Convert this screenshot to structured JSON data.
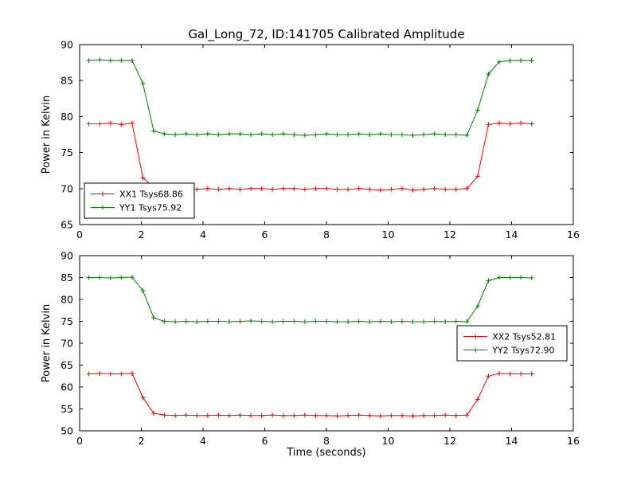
{
  "figure": {
    "title": "Gal_Long_72, ID:141705 Calibrated Amplitude",
    "xlabel": "Time (seconds)",
    "background": "#ffffff",
    "axis_color": "#000000"
  },
  "chart_data": [
    {
      "type": "line",
      "ylabel": "Power in Kelvin",
      "xlim": [
        0,
        16
      ],
      "ylim": [
        65,
        90
      ],
      "xticks": [
        0,
        2,
        4,
        6,
        8,
        10,
        12,
        14,
        16
      ],
      "yticks": [
        65,
        70,
        75,
        80,
        85,
        90
      ],
      "grid": false,
      "legend_position": "lower-left",
      "marker": "plus",
      "x": [
        0.3,
        0.65,
        1.0,
        1.35,
        1.7,
        2.05,
        2.4,
        2.75,
        3.1,
        3.45,
        3.8,
        4.15,
        4.5,
        4.85,
        5.2,
        5.55,
        5.9,
        6.25,
        6.6,
        6.95,
        7.3,
        7.65,
        8.0,
        8.35,
        8.7,
        9.05,
        9.4,
        9.75,
        10.1,
        10.45,
        10.8,
        11.15,
        11.5,
        11.85,
        12.2,
        12.55,
        12.9,
        13.25,
        13.6,
        13.95,
        14.3,
        14.65
      ],
      "series": [
        {
          "name": "XX1 Tsys68.86",
          "color": "#ff0000",
          "values": [
            79.0,
            79.0,
            79.1,
            78.9,
            79.1,
            71.5,
            70.2,
            70.1,
            70.0,
            70.0,
            69.9,
            70.0,
            69.9,
            70.0,
            69.9,
            70.0,
            70.0,
            69.9,
            70.0,
            70.0,
            69.9,
            70.0,
            70.0,
            69.9,
            69.9,
            70.0,
            69.9,
            69.8,
            69.9,
            70.0,
            69.8,
            69.9,
            70.0,
            69.9,
            69.9,
            70.0,
            71.7,
            78.9,
            79.1,
            79.0,
            79.1,
            79.0
          ]
        },
        {
          "name": "YY1 Tsys75.92",
          "color": "#008000",
          "values": [
            87.8,
            87.9,
            87.8,
            87.8,
            87.8,
            84.6,
            78.0,
            77.6,
            77.5,
            77.6,
            77.5,
            77.6,
            77.5,
            77.6,
            77.6,
            77.5,
            77.6,
            77.5,
            77.6,
            77.5,
            77.4,
            77.5,
            77.6,
            77.5,
            77.5,
            77.6,
            77.5,
            77.6,
            77.5,
            77.5,
            77.4,
            77.5,
            77.6,
            77.5,
            77.5,
            77.4,
            80.9,
            85.9,
            87.6,
            87.8,
            87.8,
            87.8
          ]
        }
      ]
    },
    {
      "type": "line",
      "ylabel": "Power in Kelvin",
      "xlim": [
        0,
        16
      ],
      "ylim": [
        50,
        90
      ],
      "xticks": [
        0,
        2,
        4,
        6,
        8,
        10,
        12,
        14,
        16
      ],
      "yticks": [
        50,
        55,
        60,
        65,
        70,
        75,
        80,
        85,
        90
      ],
      "grid": false,
      "legend_position": "center-right",
      "marker": "plus",
      "x": [
        0.3,
        0.65,
        1.0,
        1.35,
        1.7,
        2.05,
        2.4,
        2.75,
        3.1,
        3.45,
        3.8,
        4.15,
        4.5,
        4.85,
        5.2,
        5.55,
        5.9,
        6.25,
        6.6,
        6.95,
        7.3,
        7.65,
        8.0,
        8.35,
        8.7,
        9.05,
        9.4,
        9.75,
        10.1,
        10.45,
        10.8,
        11.15,
        11.5,
        11.85,
        12.2,
        12.55,
        12.9,
        13.25,
        13.6,
        13.95,
        14.3,
        14.65
      ],
      "series": [
        {
          "name": "XX2 Tsys52.81",
          "color": "#ff0000",
          "values": [
            63.0,
            63.1,
            63.0,
            63.0,
            63.1,
            57.6,
            54.0,
            53.6,
            53.5,
            53.6,
            53.5,
            53.5,
            53.6,
            53.5,
            53.6,
            53.5,
            53.5,
            53.6,
            53.5,
            53.5,
            53.6,
            53.5,
            53.5,
            53.4,
            53.5,
            53.6,
            53.5,
            53.4,
            53.5,
            53.5,
            53.4,
            53.5,
            53.5,
            53.6,
            53.5,
            53.6,
            57.2,
            62.5,
            63.1,
            63.0,
            63.0,
            63.0
          ]
        },
        {
          "name": "YY2 Tsys72.90",
          "color": "#008000",
          "values": [
            85.0,
            85.0,
            84.9,
            85.0,
            85.1,
            82.0,
            75.8,
            75.0,
            74.9,
            75.0,
            74.9,
            75.0,
            75.0,
            74.9,
            75.0,
            75.1,
            75.0,
            74.9,
            75.0,
            75.0,
            74.9,
            75.0,
            75.0,
            74.9,
            74.9,
            75.0,
            74.9,
            75.0,
            74.9,
            75.0,
            74.9,
            74.9,
            75.0,
            74.9,
            75.0,
            74.9,
            78.5,
            84.3,
            85.0,
            85.0,
            85.0,
            84.9
          ]
        }
      ]
    }
  ]
}
